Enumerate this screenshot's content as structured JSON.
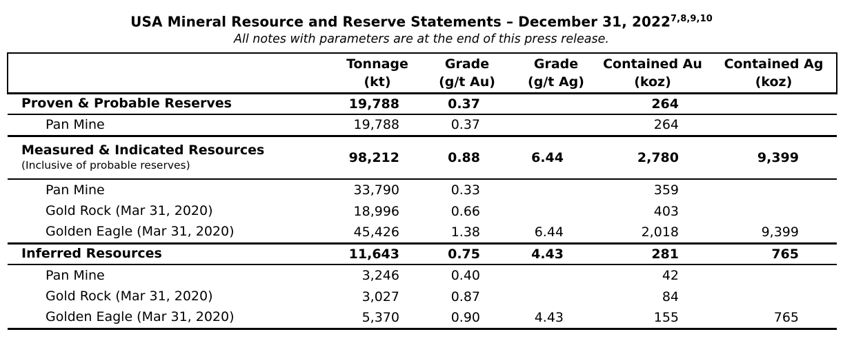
{
  "title": {
    "text": "USA Mineral Resource and Reserve Statements – December 31, 2022",
    "superscript": "7,8,9,10",
    "subtitle": "All notes with parameters are at the end of this press release."
  },
  "table": {
    "columns": [
      {
        "line1": "",
        "line2": ""
      },
      {
        "line1": "Tonnage",
        "line2": "(kt)"
      },
      {
        "line1": "Grade",
        "line2": "(g/t Au)"
      },
      {
        "line1": "Grade",
        "line2": "(g/t Ag)"
      },
      {
        "line1": "Contained Au",
        "line2": "(koz)"
      },
      {
        "line1": "Contained Ag",
        "line2": "(koz)"
      }
    ],
    "rows": [
      {
        "label": "Proven & Probable Reserves",
        "sublabel": "",
        "tonnage": "19,788",
        "grade_au": "0.37",
        "grade_ag": "",
        "contained_au": "264",
        "contained_ag": "",
        "style": "section",
        "rule_below": "thin"
      },
      {
        "label": "Pan Mine",
        "sublabel": "",
        "tonnage": "19,788",
        "grade_au": "0.37",
        "grade_ag": "",
        "contained_au": "264",
        "contained_ag": "",
        "style": "detail",
        "rule_below": "thick"
      },
      {
        "label": "Measured & Indicated Resources",
        "sublabel": "(Inclusive of probable reserves)",
        "tonnage": "98,212",
        "grade_au": "0.88",
        "grade_ag": "6.44",
        "contained_au": "2,780",
        "contained_ag": "9,399",
        "style": "section",
        "rule_below": "thin"
      },
      {
        "label": "Pan Mine",
        "sublabel": "",
        "tonnage": "33,790",
        "grade_au": "0.33",
        "grade_ag": "",
        "contained_au": "359",
        "contained_ag": "",
        "style": "detail",
        "rule_below": "none"
      },
      {
        "label": "Gold Rock (Mar 31, 2020)",
        "sublabel": "",
        "tonnage": "18,996",
        "grade_au": "0.66",
        "grade_ag": "",
        "contained_au": "403",
        "contained_ag": "",
        "style": "detail",
        "rule_below": "none"
      },
      {
        "label": "Golden Eagle (Mar 31, 2020)",
        "sublabel": "",
        "tonnage": "45,426",
        "grade_au": "1.38",
        "grade_ag": "6.44",
        "contained_au": "2,018",
        "contained_ag": "9,399",
        "style": "detail",
        "rule_below": "thick"
      },
      {
        "label": "Inferred Resources",
        "sublabel": "",
        "tonnage": "11,643",
        "grade_au": "0.75",
        "grade_ag": "4.43",
        "contained_au": "281",
        "contained_ag": "765",
        "style": "section",
        "rule_below": "thin"
      },
      {
        "label": "Pan Mine",
        "sublabel": "",
        "tonnage": "3,246",
        "grade_au": "0.40",
        "grade_ag": "",
        "contained_au": "42",
        "contained_ag": "",
        "style": "detail",
        "rule_below": "none"
      },
      {
        "label": "Gold Rock (Mar 31, 2020)",
        "sublabel": "",
        "tonnage": "3,027",
        "grade_au": "0.87",
        "grade_ag": "",
        "contained_au": "84",
        "contained_ag": "",
        "style": "detail",
        "rule_below": "none"
      },
      {
        "label": "Golden Eagle (Mar 31, 2020)",
        "sublabel": "",
        "tonnage": "5,370",
        "grade_au": "0.90",
        "grade_ag": "4.43",
        "contained_au": "155",
        "contained_ag": "765",
        "style": "detail",
        "rule_below": "thick"
      }
    ]
  },
  "colors": {
    "text": "#000000",
    "background": "#ffffff",
    "rule": "#000000"
  }
}
